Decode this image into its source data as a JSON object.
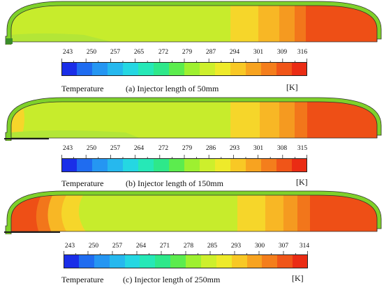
{
  "panels": [
    {
      "caption": "(a) Injector length of 50mm",
      "legend_title": "Temperature",
      "unit": "[K]",
      "ticks": [
        "243",
        "250",
        "257",
        "265",
        "272",
        "279",
        "287",
        "294",
        "301",
        "309",
        "316"
      ],
      "injector_length_mm": 50
    },
    {
      "caption": "(b) Injector length of 150mm",
      "legend_title": "Temperature",
      "unit": "[K]",
      "ticks": [
        "243",
        "250",
        "257",
        "264",
        "272",
        "279",
        "286",
        "293",
        "301",
        "308",
        "315"
      ],
      "injector_length_mm": 150
    },
    {
      "caption": "(c) Injector length of 250mm",
      "legend_title": "Temperature",
      "unit": "[K]",
      "ticks": [
        "243",
        "250",
        "257",
        "264",
        "271",
        "278",
        "285",
        "293",
        "300",
        "307",
        "314"
      ],
      "injector_length_mm": 250
    }
  ],
  "colormap": [
    "#1a2ee8",
    "#1f6cf0",
    "#2596f2",
    "#26b8ee",
    "#25d7e2",
    "#26e8b7",
    "#2ee88a",
    "#5cec4e",
    "#9ef030",
    "#cdef2c",
    "#eeea2a",
    "#f8c825",
    "#f7a320",
    "#f47e1c",
    "#f05518",
    "#ea2c14"
  ],
  "colors": {
    "wall": "#7fd12a",
    "wall_outline": "#2d2d2d",
    "bulk": "#c7ec2c",
    "cold_zone": "#b3e637",
    "hot_1": "#f6d62a",
    "hot_2": "#f8b725",
    "hot_3": "#f59a20",
    "hot_4": "#f2761b",
    "hot_5": "#ee4f16",
    "injector": "#1a1a1a"
  }
}
